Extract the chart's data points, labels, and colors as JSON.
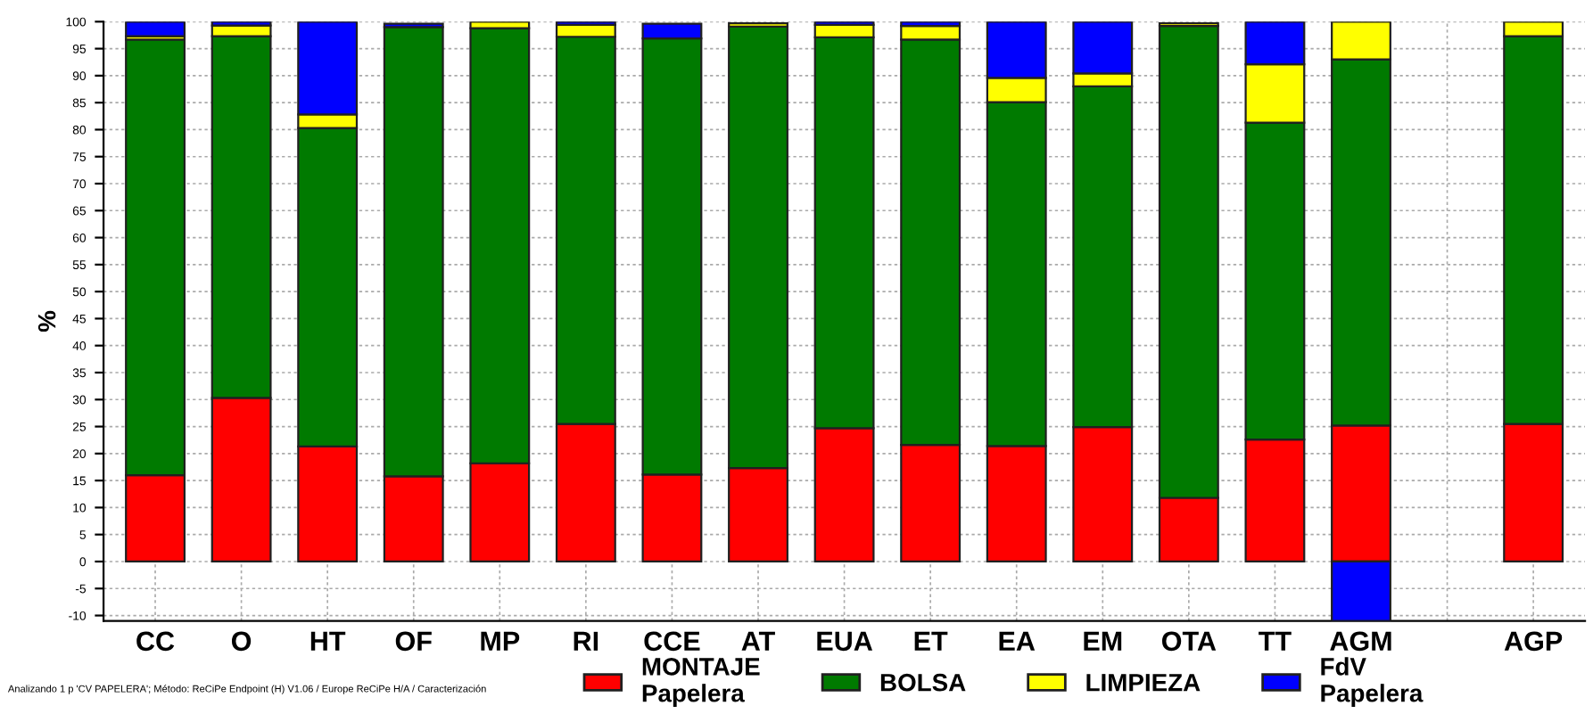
{
  "chart_data": {
    "type": "bar",
    "stacked": true,
    "ylabel": "%",
    "categories": [
      "CC",
      "O",
      "HT",
      "OF",
      "MP",
      "RI",
      "CCE",
      "AT",
      "EUA",
      "ET",
      "EA",
      "EM",
      "OTA",
      "TT",
      "AGM",
      null,
      "AGP"
    ],
    "series": [
      {
        "name": "MONTAJE\nPapelera",
        "color": "#ff0000",
        "values": [
          16,
          30.3,
          21.3,
          15.8,
          18.2,
          25.5,
          16.1,
          17.3,
          24.7,
          21.6,
          21.4,
          24.9,
          11.8,
          22.6,
          25.2,
          0,
          25.5
        ]
      },
      {
        "name": "BOLSA",
        "color": "#007a00",
        "values": [
          80.7,
          67,
          59,
          83.2,
          80.6,
          71.7,
          80.8,
          81.8,
          72.4,
          75.1,
          63.7,
          63.1,
          87.4,
          58.7,
          67.8,
          0,
          71.8
        ]
      },
      {
        "name": "LIMPIEZA",
        "color": "#ffff00",
        "values": [
          0.6,
          2,
          2.5,
          null,
          1.2,
          2.2,
          null,
          0.6,
          2.3,
          2.5,
          4.5,
          2.4,
          0.5,
          10.8,
          7,
          0,
          2.7
        ]
      },
      {
        "name": "FdV\nPapelera",
        "color": "#0000ff",
        "values": [
          2.7,
          0.7,
          17.2,
          0.6,
          0,
          0.6,
          2.7,
          null,
          0.6,
          0.8,
          10.4,
          9.6,
          null,
          7.9,
          -11,
          0,
          0
        ]
      }
    ],
    "ylim": [
      -11,
      100
    ],
    "yticks": [
      -10,
      -5,
      0,
      5,
      10,
      15,
      20,
      25,
      30,
      35,
      40,
      45,
      50,
      55,
      60,
      65,
      70,
      75,
      80,
      85,
      90,
      95,
      100
    ],
    "grid": true,
    "legend": "bottom",
    "annotations": [
      "Analizando 1 p 'CV PAPELERA'; Método: ReCiPe Endpoint (H) V1.06 / Europe ReCiPe H/A / Caracterización"
    ]
  }
}
